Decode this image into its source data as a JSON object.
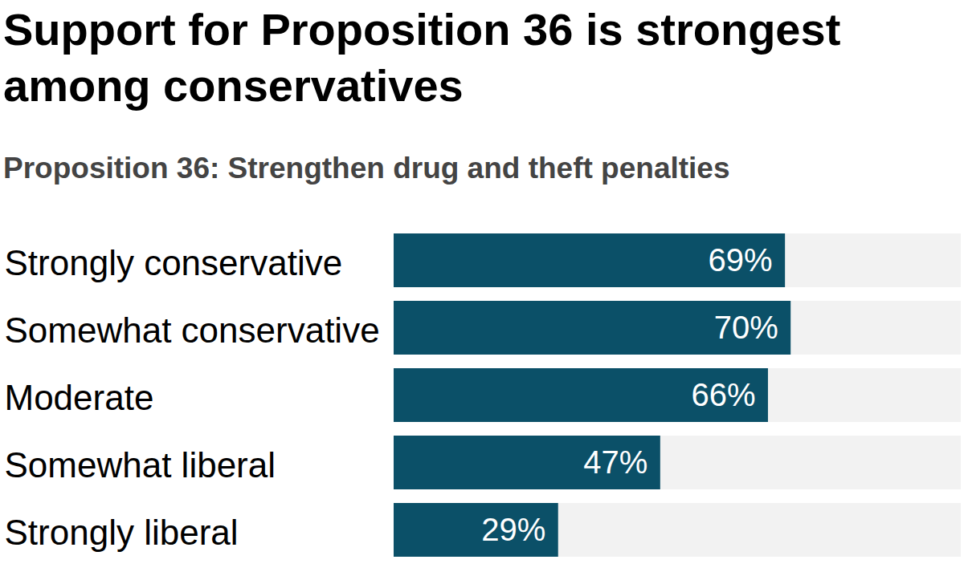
{
  "chart_data": {
    "type": "bar",
    "title": "Support for Proposition 36 is strongest among conservatives",
    "subtitle": "Proposition 36: Strengthen drug and theft penalties",
    "orientation": "horizontal",
    "categories": [
      "Strongly conservative",
      "Somewhat conservative",
      "Moderate",
      "Somewhat liberal",
      "Strongly liberal"
    ],
    "values": [
      69,
      70,
      66,
      47,
      29
    ],
    "value_labels": [
      "69%",
      "70%",
      "66%",
      "47%",
      "29%"
    ],
    "color": "#0b5068",
    "xlim": [
      0,
      100
    ],
    "data_labels": true,
    "tick_labels": false,
    "grid": false
  }
}
